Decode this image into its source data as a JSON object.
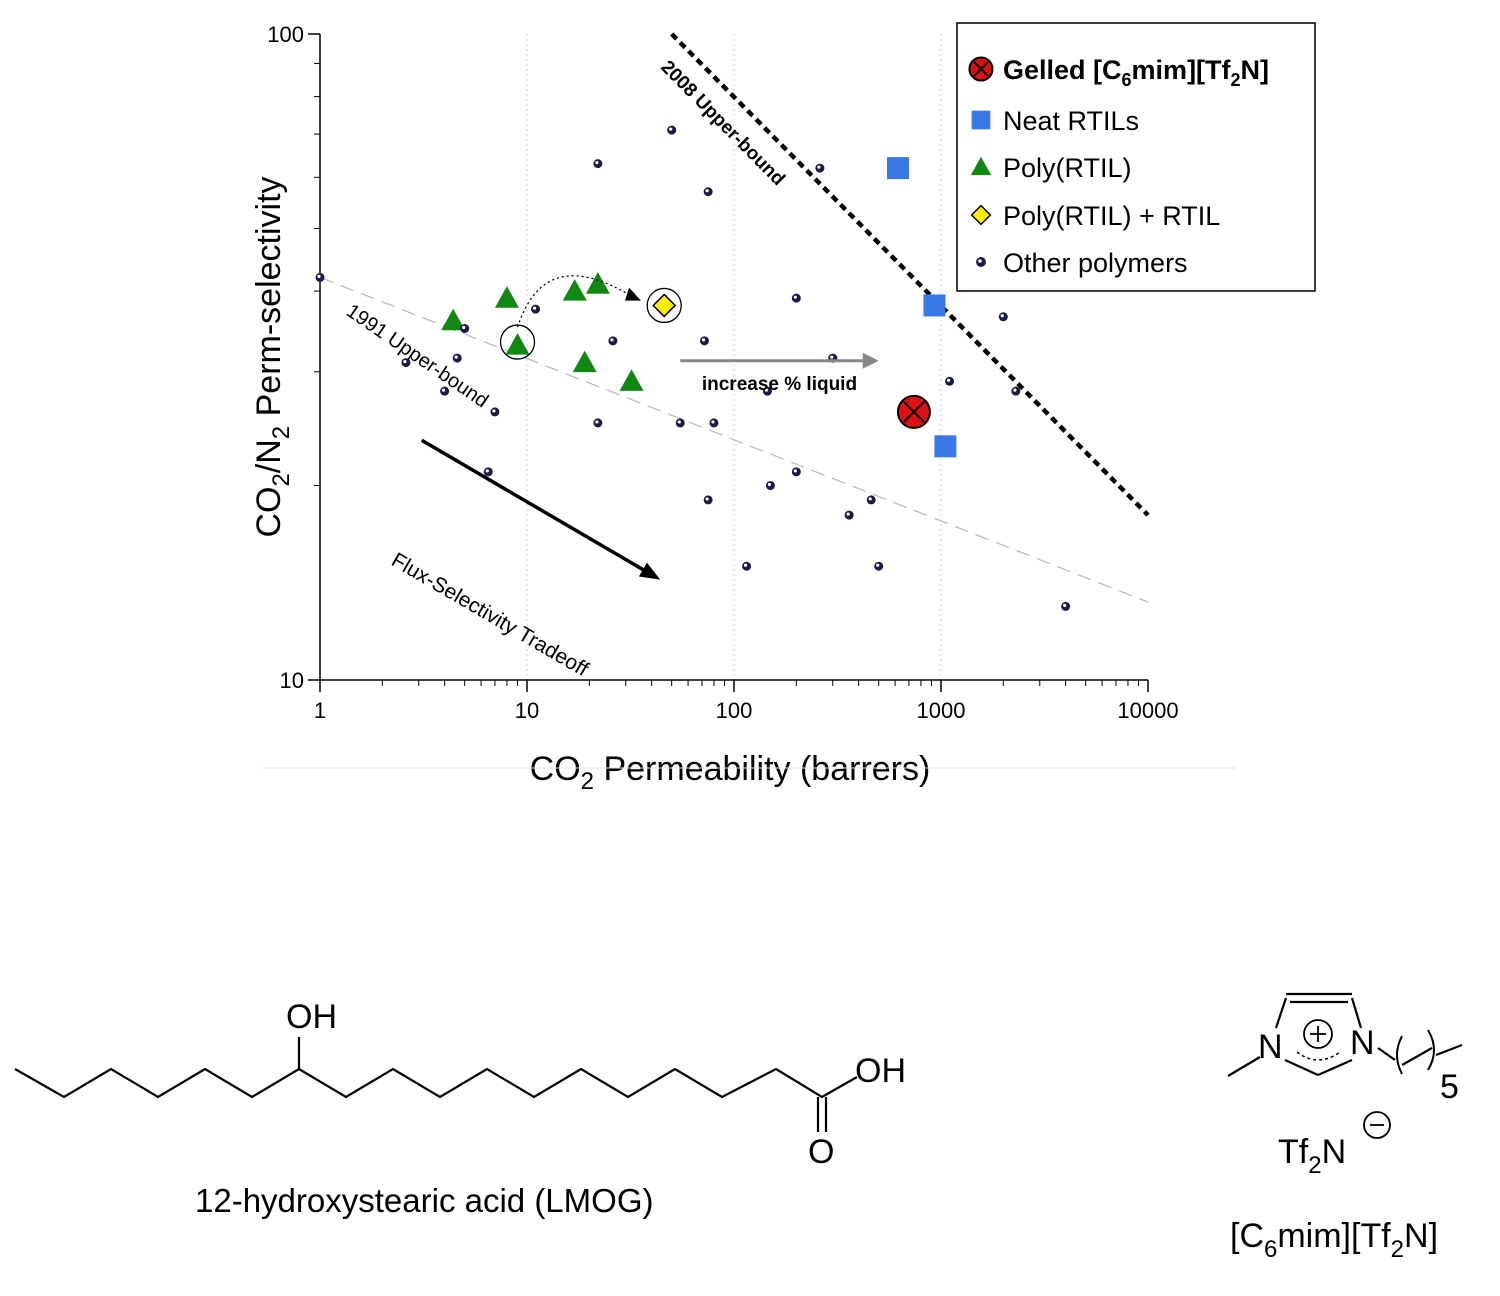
{
  "chart_data": {
    "type": "scatter",
    "x_scale": "log",
    "y_scale": "log",
    "xlim": [
      1,
      10000
    ],
    "ylim": [
      10,
      100
    ],
    "x_ticks": [
      "1",
      "10",
      "100",
      "1000",
      "10000"
    ],
    "y_ticks": [
      "100",
      "10"
    ],
    "xlabel": "CO2 Permeability (barrers)",
    "ylabel": "CO2/N2 Perm-selectivity",
    "grid": "vertical dotted at decades",
    "legend_position": "top-right",
    "legend": [
      {
        "label": "Gelled [C6mim][Tf2N]",
        "bold": true
      },
      {
        "label": "Neat RTILs"
      },
      {
        "label": "Poly(RTIL)"
      },
      {
        "label": "Poly(RTIL) + RTIL"
      },
      {
        "label": "Other polymers"
      }
    ],
    "series": [
      {
        "name": "Gelled [C6mim][Tf2N]",
        "marker": "circle-x",
        "color": "#dd1111",
        "points": [
          [
            740,
            26
          ]
        ]
      },
      {
        "name": "Neat RTILs",
        "marker": "square",
        "color": "#3a78e6",
        "points": [
          [
            620,
            62
          ],
          [
            930,
            38
          ],
          [
            1050,
            23
          ]
        ]
      },
      {
        "name": "Poly(RTIL)",
        "marker": "triangle",
        "color": "#118811",
        "points": [
          [
            4.4,
            36
          ],
          [
            8,
            39
          ],
          [
            9,
            33
          ],
          [
            17,
            40
          ],
          [
            19,
            31
          ],
          [
            22,
            41
          ],
          [
            32,
            29
          ]
        ]
      },
      {
        "name": "Poly(RTIL) + RTIL",
        "marker": "diamond",
        "color": "#ffee00",
        "points": [
          [
            46,
            38
          ]
        ]
      },
      {
        "name": "Other polymers",
        "marker": "dot",
        "color": "#1a1a4a",
        "points": [
          [
            1,
            42
          ],
          [
            2.6,
            31
          ],
          [
            4,
            28
          ],
          [
            4.6,
            31.5
          ],
          [
            5,
            35
          ],
          [
            6.5,
            21
          ],
          [
            7,
            26
          ],
          [
            11,
            37.5
          ],
          [
            22,
            63
          ],
          [
            22,
            25
          ],
          [
            26,
            33.5
          ],
          [
            50,
            71
          ],
          [
            55,
            25
          ],
          [
            72,
            33.5
          ],
          [
            75,
            57
          ],
          [
            75,
            19
          ],
          [
            80,
            25
          ],
          [
            115,
            15
          ],
          [
            145,
            28
          ],
          [
            150,
            20
          ],
          [
            200,
            21
          ],
          [
            200,
            39
          ],
          [
            260,
            62
          ],
          [
            300,
            31.5
          ],
          [
            360,
            18
          ],
          [
            460,
            19
          ],
          [
            500,
            15
          ],
          [
            1100,
            29
          ],
          [
            2000,
            36.5
          ],
          [
            2300,
            28
          ],
          [
            4000,
            13
          ]
        ]
      }
    ],
    "upper_bounds": [
      {
        "label": "1991 Upper-bound",
        "style": "thin dashed grey",
        "from": [
          1,
          42
        ],
        "to": [
          10000,
          13.2
        ]
      },
      {
        "label": "2008 Upper-bound",
        "style": "thick dotted black",
        "from": [
          50,
          100
        ],
        "to": [
          10000,
          18
        ]
      }
    ],
    "annotations": [
      {
        "text": "increase % liquid",
        "type": "arrow",
        "from": [
          55,
          31.2
        ],
        "to": [
          500,
          31.2
        ]
      },
      {
        "text": "Flux-Selectivity Tradeoff",
        "type": "arrow",
        "from": [
          3.1,
          23.5
        ],
        "to": [
          44,
          14.3
        ]
      },
      {
        "type": "curved-dotted-arrow",
        "from": [
          9,
          33
        ],
        "to": [
          34,
          39.5
        ]
      }
    ]
  },
  "chemistry": {
    "molecule1": {
      "oh_label": "OH",
      "acid_oh_label": "OH",
      "o_label": "O",
      "caption": "12-hydroxystearic acid  (LMOG)"
    },
    "molecule2": {
      "n1_label": "N",
      "n3_label": "N",
      "chain_subscript": "5",
      "anion_label": "Tf",
      "anion_sub": "2",
      "anion_tail": "N",
      "caption_parts": [
        "[C",
        "6",
        "mim][Tf",
        "2",
        "N]"
      ]
    }
  }
}
